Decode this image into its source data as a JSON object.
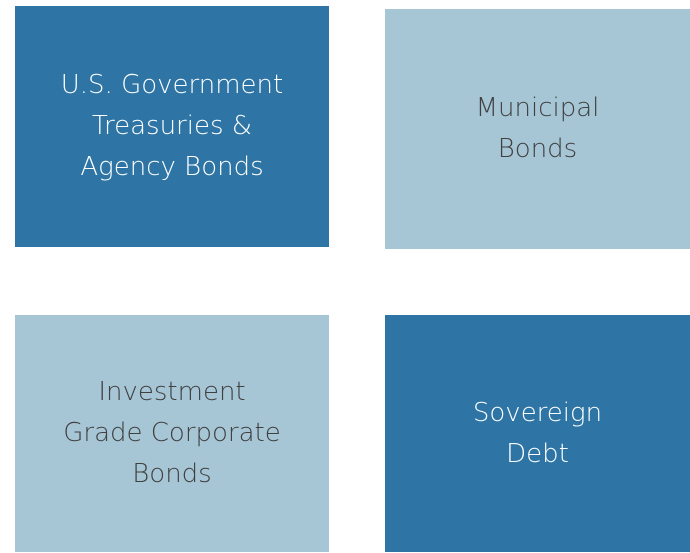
{
  "nodes": [
    {
      "lines": [
        "U.S. Government",
        "Treasuries &",
        "Agency Bonds"
      ]
    },
    {
      "lines": [
        "Municipal",
        "Bonds"
      ]
    },
    {
      "lines": [
        "Investment",
        "Grade Corporate",
        "Bonds"
      ]
    },
    {
      "lines": [
        "Sovereign",
        "Debt"
      ]
    }
  ]
}
